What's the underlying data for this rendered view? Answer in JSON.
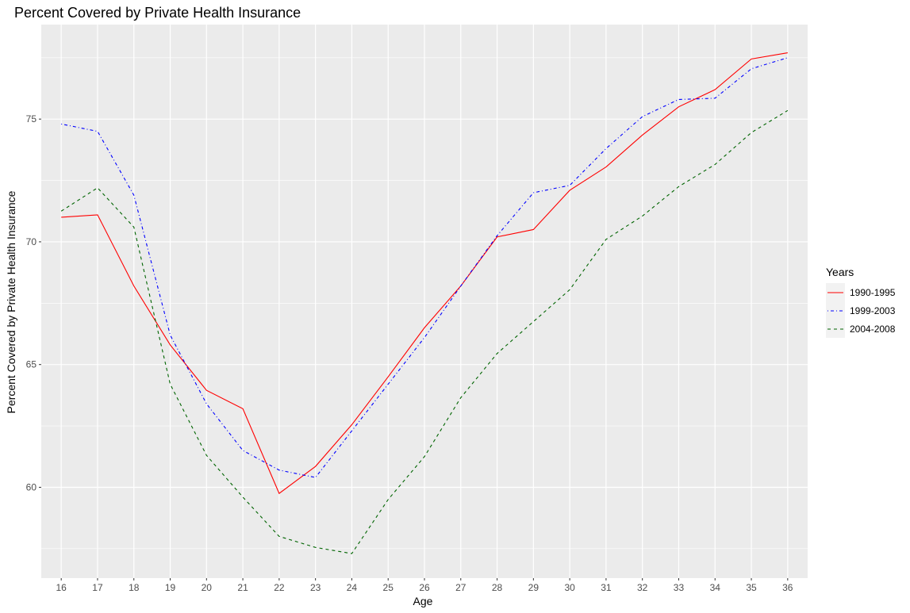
{
  "chart_data": {
    "type": "line",
    "title": "Percent Covered by Private Health Insurance",
    "xlabel": "Age",
    "ylabel": "Percent Covered by Private Health Insurance",
    "x": [
      16,
      17,
      18,
      19,
      20,
      21,
      22,
      23,
      24,
      25,
      26,
      27,
      28,
      29,
      30,
      31,
      32,
      33,
      34,
      35,
      36
    ],
    "xlim": [
      15.45,
      36.55
    ],
    "ylim": [
      56.3,
      78.85
    ],
    "yticks": [
      60,
      65,
      70,
      75
    ],
    "grid": true,
    "legend": {
      "title": "Years",
      "placement": "right"
    },
    "series": [
      {
        "name": "1990-1995",
        "color": "#ff0000",
        "linetype": "solid",
        "values": [
          71.0,
          71.1,
          68.2,
          65.8,
          63.95,
          63.2,
          59.75,
          60.85,
          62.55,
          64.5,
          66.5,
          68.2,
          70.2,
          70.5,
          72.1,
          73.05,
          74.35,
          75.5,
          76.2,
          77.45,
          77.7
        ]
      },
      {
        "name": "1999-2003",
        "color": "#0000ff",
        "linetype": "dotdash",
        "values": [
          74.8,
          74.5,
          71.9,
          66.2,
          63.4,
          61.5,
          60.7,
          60.4,
          62.3,
          64.2,
          66.1,
          68.2,
          70.25,
          72.0,
          72.3,
          73.8,
          75.1,
          75.8,
          75.85,
          77.05,
          77.5
        ]
      },
      {
        "name": "2004-2008",
        "color": "#006400",
        "linetype": "dashed",
        "values": [
          71.25,
          72.2,
          70.6,
          64.2,
          61.3,
          59.6,
          58.0,
          57.55,
          57.3,
          59.5,
          61.25,
          63.65,
          65.45,
          66.75,
          68.05,
          70.1,
          71.05,
          72.25,
          73.15,
          74.45,
          75.35
        ]
      }
    ]
  }
}
